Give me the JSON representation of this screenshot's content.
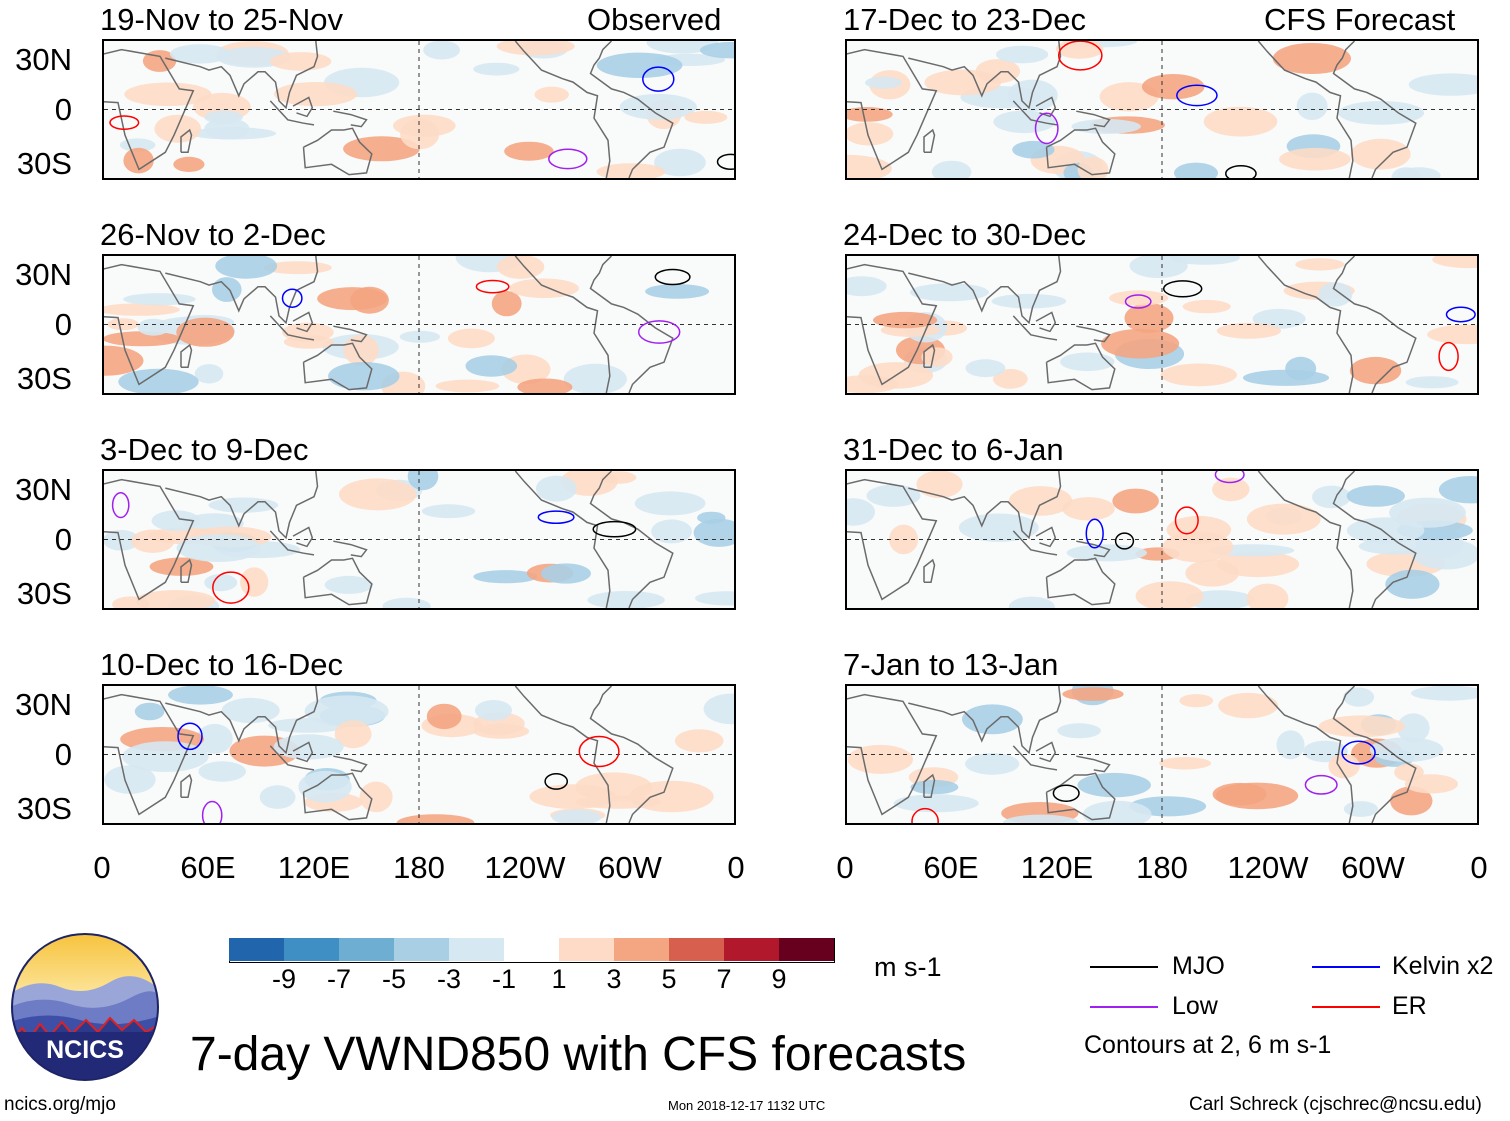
{
  "chart_data": {
    "type": "heatmap",
    "title": "7-day VWND850 with CFS forecasts",
    "variable": "VWND850",
    "units": "m s-1",
    "observed_label": "Observed",
    "forecast_label": "CFS Forecast",
    "panels_left": [
      {
        "period": "19-Nov to 25-Nov",
        "label": "Observed"
      },
      {
        "period": "26-Nov to 2-Dec",
        "label": ""
      },
      {
        "period": "3-Dec to 9-Dec",
        "label": ""
      },
      {
        "period": "10-Dec to 16-Dec",
        "label": ""
      }
    ],
    "panels_right": [
      {
        "period": "17-Dec to 23-Dec",
        "label": "CFS Forecast"
      },
      {
        "period": "24-Dec to 30-Dec",
        "label": ""
      },
      {
        "period": "31-Dec to 6-Jan",
        "label": ""
      },
      {
        "period": "7-Jan to 13-Jan",
        "label": ""
      }
    ],
    "y_ticks": [
      "30N",
      "0",
      "30S"
    ],
    "x_ticks": [
      "0",
      "60E",
      "120E",
      "180",
      "120W",
      "60W",
      "0"
    ],
    "lat_range": [
      -40,
      40
    ],
    "lon_range": [
      0,
      360
    ],
    "colorbar": {
      "labels": [
        "-9",
        "-7",
        "-5",
        "-3",
        "-1",
        "1",
        "3",
        "5",
        "7",
        "9"
      ],
      "colors": [
        "#0b3d6b",
        "#2166ac",
        "#3f8fc5",
        "#6eaed3",
        "#a9cfe5",
        "#d6e8f2",
        "#ffffff",
        "#fddbc7",
        "#f4a582",
        "#d6604d",
        "#b2182b",
        "#67001f"
      ]
    },
    "legend": [
      {
        "name": "MJO",
        "color": "#000000"
      },
      {
        "name": "Kelvin x2",
        "color": "#0000ff"
      },
      {
        "name": "Low",
        "color": "#a020f0"
      },
      {
        "name": "ER",
        "color": "#ff0000"
      }
    ],
    "contour_note": "Contours at 2, 6 m s-1"
  },
  "logo": {
    "text": "NCICS"
  },
  "footer": {
    "left": "ncics.org/mjo",
    "center": "Mon 2018-12-17 1132 UTC",
    "right": "Carl Schreck (cjschrec@ncsu.edu)"
  }
}
